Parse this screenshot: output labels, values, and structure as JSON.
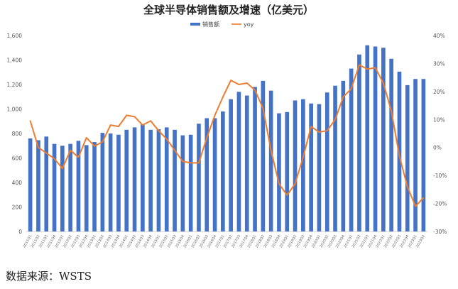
{
  "source_text": "数据来源：WSTS",
  "chart_data": {
    "type": "bar",
    "title": "全球半导体销售额及增速（亿美元）",
    "legend_position": "top-center",
    "grid": false,
    "categories": [
      "2011Q1",
      "2011Q2",
      "2011Q3",
      "2011Q4",
      "2012Q1",
      "2012Q2",
      "2012Q3",
      "2012Q4",
      "2013Q1",
      "2013Q2",
      "2013Q3",
      "2013Q4",
      "2014Q1",
      "2014Q2",
      "2014Q3",
      "2014Q4",
      "2015Q1",
      "2015Q2",
      "2015Q3",
      "2015Q4",
      "2016Q1",
      "2016Q2",
      "2016Q3",
      "2016Q4",
      "2017Q1",
      "2017Q2",
      "2017Q3",
      "2017Q4",
      "2018Q1",
      "2018Q2",
      "2018Q3",
      "2018Q4",
      "2019Q1",
      "2019Q2",
      "2019Q3",
      "2019Q4",
      "2020Q1",
      "2020Q2",
      "2020Q3",
      "2020Q4",
      "2021Q1",
      "2021Q2",
      "2021Q3",
      "2021Q4",
      "2022Q1",
      "2022Q2",
      "2022Q3",
      "2022Q4",
      "2023Q1",
      "2023Q2"
    ],
    "y_left": {
      "min": 0,
      "max": 1600,
      "step": 200
    },
    "y_right": {
      "min": -30,
      "max": 40,
      "step": 10,
      "unit": "%"
    },
    "series": [
      {
        "name": "销售额",
        "type": "bar",
        "axis": "left",
        "color": "#4472C4",
        "values": [
          760,
          745,
          775,
          715,
          700,
          715,
          740,
          705,
          730,
          805,
          800,
          790,
          830,
          850,
          875,
          830,
          835,
          850,
          830,
          785,
          790,
          880,
          925,
          925,
          980,
          1080,
          1140,
          1110,
          1180,
          1230,
          1150,
          965,
          975,
          1070,
          1080,
          1045,
          1040,
          1135,
          1190,
          1230,
          1330,
          1445,
          1520,
          1510,
          1500,
          1410,
          1305,
          1195,
          1245,
          1245
        ]
      },
      {
        "name": "yoy",
        "type": "line",
        "axis": "right",
        "color": "#ED7D31",
        "values": [
          9.5,
          0,
          -2,
          -4,
          -7.5,
          -1,
          -3.5,
          3.5,
          0.5,
          2,
          8,
          7.5,
          11.5,
          11,
          8,
          9.5,
          6,
          3,
          -1,
          -5,
          -5.5,
          -5.5,
          3.5,
          11.5,
          18,
          24,
          22.5,
          23,
          20.5,
          14,
          -1,
          -13,
          -17,
          -13,
          -3.5,
          7.5,
          5.5,
          6,
          10,
          18,
          21,
          29.5,
          28,
          28.5,
          23,
          13,
          -3,
          -14,
          -21,
          -18
        ]
      }
    ]
  }
}
